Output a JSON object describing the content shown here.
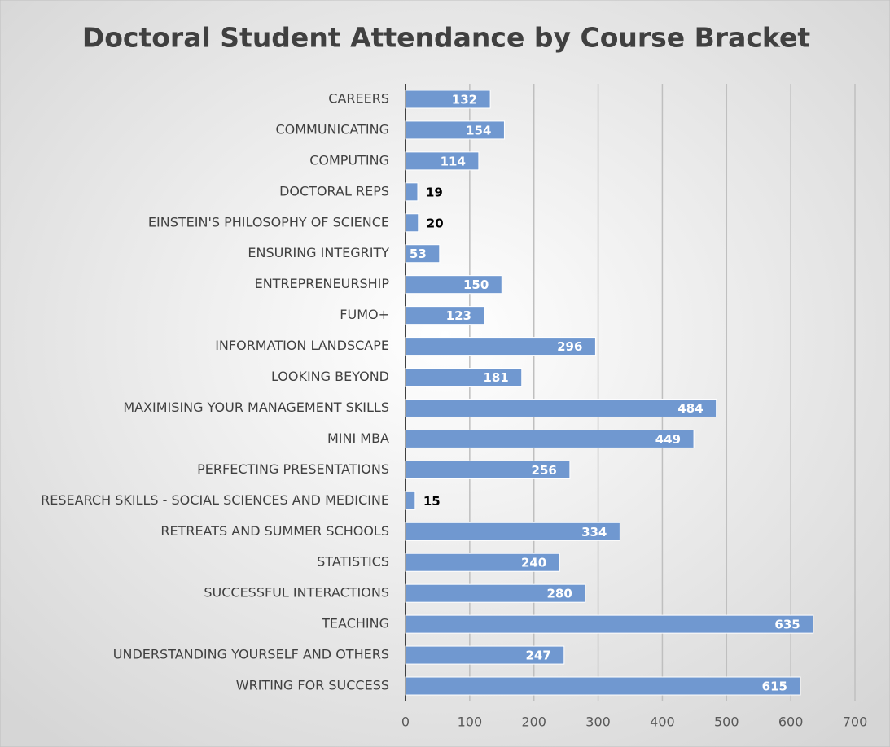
{
  "chart_data": {
    "type": "barh",
    "title": "Doctoral Student Attendance by Course Bracket",
    "categories": [
      "CAREERS",
      "COMMUNICATING",
      "COMPUTING",
      "DOCTORAL REPS",
      "EINSTEIN'S PHILOSOPHY OF SCIENCE",
      "ENSURING INTEGRITY",
      "ENTREPRENEURSHIP",
      "FUMO+",
      "INFORMATION LANDSCAPE",
      "LOOKING BEYOND",
      "MAXIMISING YOUR MANAGEMENT SKILLS",
      "MINI MBA",
      "PERFECTING PRESENTATIONS",
      "RESEARCH SKILLS - SOCIAL SCIENCES AND MEDICINE",
      "RETREATS AND SUMMER SCHOOLS",
      "STATISTICS",
      "SUCCESSFUL INTERACTIONS",
      "TEACHING",
      "UNDERSTANDING YOURSELF AND OTHERS",
      "WRITING FOR SUCCESS"
    ],
    "values": [
      132,
      154,
      114,
      19,
      20,
      53,
      150,
      123,
      296,
      181,
      484,
      449,
      256,
      15,
      334,
      240,
      280,
      635,
      247,
      615
    ],
    "color": "#7098d0",
    "xlim": [
      0,
      700
    ],
    "xticks": [
      0,
      100,
      200,
      300,
      400,
      500,
      600,
      700
    ],
    "grid": true
  }
}
